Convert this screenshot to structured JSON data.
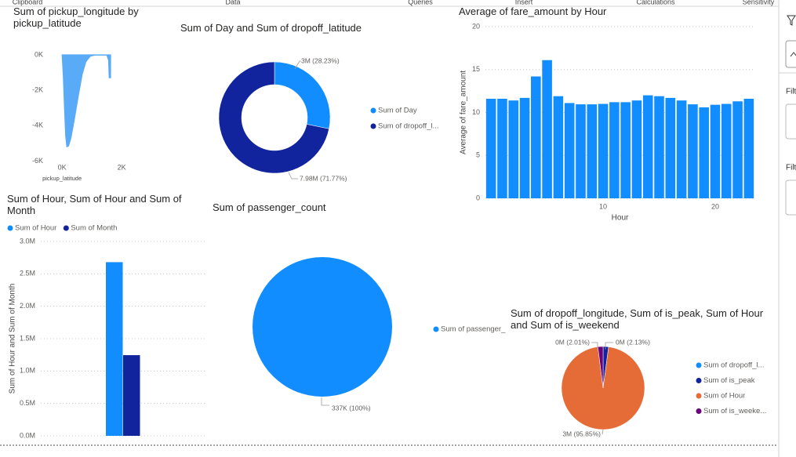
{
  "ribbon": {
    "groups": [
      "Clipboard",
      "Data",
      "Queries",
      "Insert",
      "Calculations",
      "Sensitivity"
    ]
  },
  "filters_pane": {
    "labels": [
      "Filt",
      "Filt"
    ]
  },
  "chart_data": [
    {
      "type": "area",
      "title": "Sum of pickup_longitude by pickup_latitude",
      "x_label": "pickup_latitude",
      "x": [
        0,
        40,
        80,
        120,
        160,
        220,
        300,
        420,
        550,
        680,
        800,
        950,
        1100,
        1500,
        1560,
        1580,
        1630,
        1632
      ],
      "values": [
        0,
        -1200,
        -3000,
        -4600,
        -5200,
        -5150,
        -4700,
        -3600,
        -2300,
        -1100,
        -400,
        -80,
        -20,
        -20,
        -300,
        -1300,
        -1300,
        0
      ],
      "color": "#5aabf7",
      "xlim": [
        -450,
        2260
      ],
      "ylim": [
        -6200,
        350
      ],
      "xticks": [
        {
          "value": 0,
          "label": "0K"
        },
        {
          "value": 2000,
          "label": "2K"
        }
      ],
      "yticks": [
        {
          "value": 0,
          "label": "0K"
        },
        {
          "value": -2000,
          "label": "-2K"
        },
        {
          "value": -4000,
          "label": "-4K"
        },
        {
          "value": -6000,
          "label": "-6K"
        }
      ],
      "grid": false
    },
    {
      "type": "donut",
      "title": "Sum of Day and Sum of dropoff_latitude",
      "categories": [
        "Sum of Day",
        "Sum of dropoff_l..."
      ],
      "values": [
        28.23,
        71.77
      ],
      "value_labels": [
        "3M (28.23%)",
        "7.98M (71.77%)"
      ],
      "colors": [
        "#118dff",
        "#12239e"
      ],
      "legend": "right"
    },
    {
      "type": "bar",
      "title": "Average of fare_amount by Hour",
      "x_label": "Hour",
      "y_label": "Average of fare_amount",
      "x": [
        0,
        1,
        2,
        3,
        4,
        5,
        6,
        7,
        8,
        9,
        10,
        11,
        12,
        13,
        14,
        15,
        16,
        17,
        18,
        19,
        20,
        21,
        22,
        23
      ],
      "values": [
        11.6,
        11.6,
        11.4,
        11.7,
        14.2,
        16.1,
        11.9,
        11.1,
        10.95,
        10.95,
        11.0,
        11.2,
        11.2,
        11.4,
        12.0,
        11.9,
        11.7,
        11.4,
        10.95,
        10.6,
        10.9,
        11.0,
        11.3,
        11.6
      ],
      "color": "#118dff",
      "xlim": [
        -0.5,
        23.5
      ],
      "ylim": [
        0,
        20
      ],
      "xticks": [
        10,
        20
      ],
      "yticks": [
        0,
        5,
        10,
        15,
        20
      ],
      "grid": true
    },
    {
      "type": "column",
      "title": "Sum of Hour, Sum of Hour and Sum of Month",
      "y_label": "Sum of Hour and Sum of Month",
      "categories": [
        null
      ],
      "series": [
        {
          "name": "Sum of Hour",
          "color": "#118dff",
          "values": [
            2680000
          ]
        },
        {
          "name": "Sum of Month",
          "color": "#12239e",
          "values": [
            1245000
          ]
        }
      ],
      "ylim": [
        0,
        3000000
      ],
      "yticks": [
        {
          "value": 0,
          "label": "0.0M"
        },
        {
          "value": 500000,
          "label": "0.5M"
        },
        {
          "value": 1000000,
          "label": "1.0M"
        },
        {
          "value": 1500000,
          "label": "1.5M"
        },
        {
          "value": 2000000,
          "label": "2.0M"
        },
        {
          "value": 2500000,
          "label": "2.5M"
        },
        {
          "value": 3000000,
          "label": "3.0M"
        }
      ],
      "grid": true,
      "legend": "top-left"
    },
    {
      "type": "pie",
      "title": "Sum of passenger_count",
      "categories": [
        "Sum of passenger_"
      ],
      "values": [
        100
      ],
      "value_labels": [
        "337K (100%)"
      ],
      "colors": [
        "#118dff"
      ],
      "legend": "right"
    },
    {
      "type": "pie",
      "title": "Sum of dropoff_longitude, Sum of is_peak, Sum of Hour and Sum of is_weekend",
      "categories": [
        "Sum of dropoff_l...",
        "Sum of is_peak",
        "Sum of Hour",
        "Sum of is_weeke..."
      ],
      "values": [
        null,
        2.13,
        95.85,
        2.01
      ],
      "value_labels": [
        null,
        "0M (2.13%)",
        "3M (95.85%)",
        "0M (2.01%)"
      ],
      "colors": [
        "#118dff",
        "#12239e",
        "#e66c37",
        "#6b007b"
      ],
      "legend": "right"
    }
  ]
}
